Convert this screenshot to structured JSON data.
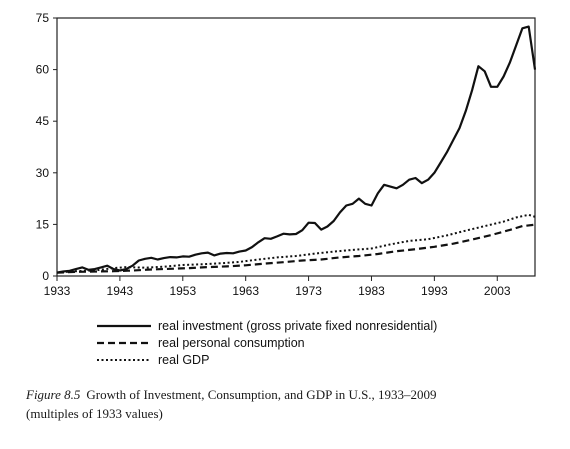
{
  "chart_data": {
    "type": "line",
    "title": "",
    "xlabel": "",
    "ylabel": "",
    "xlim": [
      1933,
      2009
    ],
    "ylim": [
      0,
      75
    ],
    "x_ticks": [
      1933,
      1943,
      1953,
      1963,
      1973,
      1983,
      1993,
      2003
    ],
    "y_ticks": [
      0,
      15,
      30,
      45,
      60,
      75
    ],
    "grid": false,
    "legend_position": "bottom",
    "series": [
      {
        "name": "real investment (gross private fixed nonresidential)",
        "style": "solid",
        "points": [
          [
            1933,
            1
          ],
          [
            1934,
            1.3
          ],
          [
            1935,
            1.5
          ],
          [
            1936,
            2
          ],
          [
            1937,
            2.5
          ],
          [
            1938,
            1.8
          ],
          [
            1939,
            2
          ],
          [
            1940,
            2.5
          ],
          [
            1941,
            3
          ],
          [
            1942,
            2
          ],
          [
            1943,
            1.6
          ],
          [
            1944,
            2
          ],
          [
            1945,
            3
          ],
          [
            1946,
            4.5
          ],
          [
            1947,
            5
          ],
          [
            1948,
            5.3
          ],
          [
            1949,
            4.8
          ],
          [
            1950,
            5.2
          ],
          [
            1951,
            5.5
          ],
          [
            1952,
            5.4
          ],
          [
            1953,
            5.7
          ],
          [
            1954,
            5.6
          ],
          [
            1955,
            6.2
          ],
          [
            1956,
            6.6
          ],
          [
            1957,
            6.8
          ],
          [
            1958,
            6
          ],
          [
            1959,
            6.5
          ],
          [
            1960,
            6.7
          ],
          [
            1961,
            6.6
          ],
          [
            1962,
            7.1
          ],
          [
            1963,
            7.4
          ],
          [
            1964,
            8.4
          ],
          [
            1965,
            9.8
          ],
          [
            1966,
            11
          ],
          [
            1967,
            10.8
          ],
          [
            1968,
            11.5
          ],
          [
            1969,
            12.3
          ],
          [
            1970,
            12.1
          ],
          [
            1971,
            12.2
          ],
          [
            1972,
            13.3
          ],
          [
            1973,
            15.5
          ],
          [
            1974,
            15.4
          ],
          [
            1975,
            13.5
          ],
          [
            1976,
            14.4
          ],
          [
            1977,
            16
          ],
          [
            1978,
            18.5
          ],
          [
            1979,
            20.5
          ],
          [
            1980,
            21
          ],
          [
            1981,
            22.5
          ],
          [
            1982,
            21
          ],
          [
            1983,
            20.5
          ],
          [
            1984,
            24
          ],
          [
            1985,
            26.5
          ],
          [
            1986,
            26
          ],
          [
            1987,
            25.5
          ],
          [
            1988,
            26.5
          ],
          [
            1989,
            28
          ],
          [
            1990,
            28.5
          ],
          [
            1991,
            27
          ],
          [
            1992,
            28
          ],
          [
            1993,
            30
          ],
          [
            1994,
            33
          ],
          [
            1995,
            36
          ],
          [
            1996,
            39.5
          ],
          [
            1997,
            43
          ],
          [
            1998,
            48
          ],
          [
            1999,
            54
          ],
          [
            2000,
            61
          ],
          [
            2001,
            59.5
          ],
          [
            2002,
            55
          ],
          [
            2003,
            55
          ],
          [
            2004,
            58
          ],
          [
            2005,
            62
          ],
          [
            2006,
            67
          ],
          [
            2007,
            72
          ],
          [
            2008,
            72.5
          ],
          [
            2009,
            60
          ]
        ]
      },
      {
        "name": "real personal consumption",
        "style": "dashed",
        "points": [
          [
            1933,
            1
          ],
          [
            1936,
            1.2
          ],
          [
            1939,
            1.3
          ],
          [
            1942,
            1.4
          ],
          [
            1945,
            1.6
          ],
          [
            1948,
            1.9
          ],
          [
            1951,
            2.1
          ],
          [
            1954,
            2.3
          ],
          [
            1957,
            2.6
          ],
          [
            1960,
            2.8
          ],
          [
            1963,
            3.1
          ],
          [
            1966,
            3.6
          ],
          [
            1969,
            4
          ],
          [
            1972,
            4.5
          ],
          [
            1975,
            4.8
          ],
          [
            1978,
            5.4
          ],
          [
            1981,
            5.8
          ],
          [
            1984,
            6.4
          ],
          [
            1987,
            7.2
          ],
          [
            1990,
            7.8
          ],
          [
            1993,
            8.5
          ],
          [
            1996,
            9.4
          ],
          [
            1999,
            10.6
          ],
          [
            2002,
            11.9
          ],
          [
            2005,
            13.4
          ],
          [
            2007,
            14.5
          ],
          [
            2009,
            14.9
          ]
        ]
      },
      {
        "name": "real GDP",
        "style": "dotted",
        "points": [
          [
            1933,
            1
          ],
          [
            1936,
            1.4
          ],
          [
            1939,
            1.6
          ],
          [
            1942,
            2.3
          ],
          [
            1944,
            2.6
          ],
          [
            1947,
            2.4
          ],
          [
            1950,
            2.7
          ],
          [
            1953,
            3.2
          ],
          [
            1956,
            3.4
          ],
          [
            1959,
            3.7
          ],
          [
            1962,
            4.1
          ],
          [
            1965,
            4.8
          ],
          [
            1968,
            5.4
          ],
          [
            1971,
            5.8
          ],
          [
            1974,
            6.5
          ],
          [
            1977,
            7.1
          ],
          [
            1980,
            7.6
          ],
          [
            1983,
            8
          ],
          [
            1986,
            9.2
          ],
          [
            1989,
            10.2
          ],
          [
            1992,
            10.7
          ],
          [
            1995,
            11.8
          ],
          [
            1998,
            13.2
          ],
          [
            2001,
            14.5
          ],
          [
            2004,
            15.8
          ],
          [
            2006,
            17
          ],
          [
            2008,
            17.8
          ],
          [
            2009,
            17.2
          ]
        ]
      }
    ]
  },
  "caption": {
    "figure_label": "Figure 8.5",
    "line1": "Growth of Investment, Consumption, and GDP in U.S., 1933–2009",
    "line2": "(multiples of 1933 values)"
  }
}
